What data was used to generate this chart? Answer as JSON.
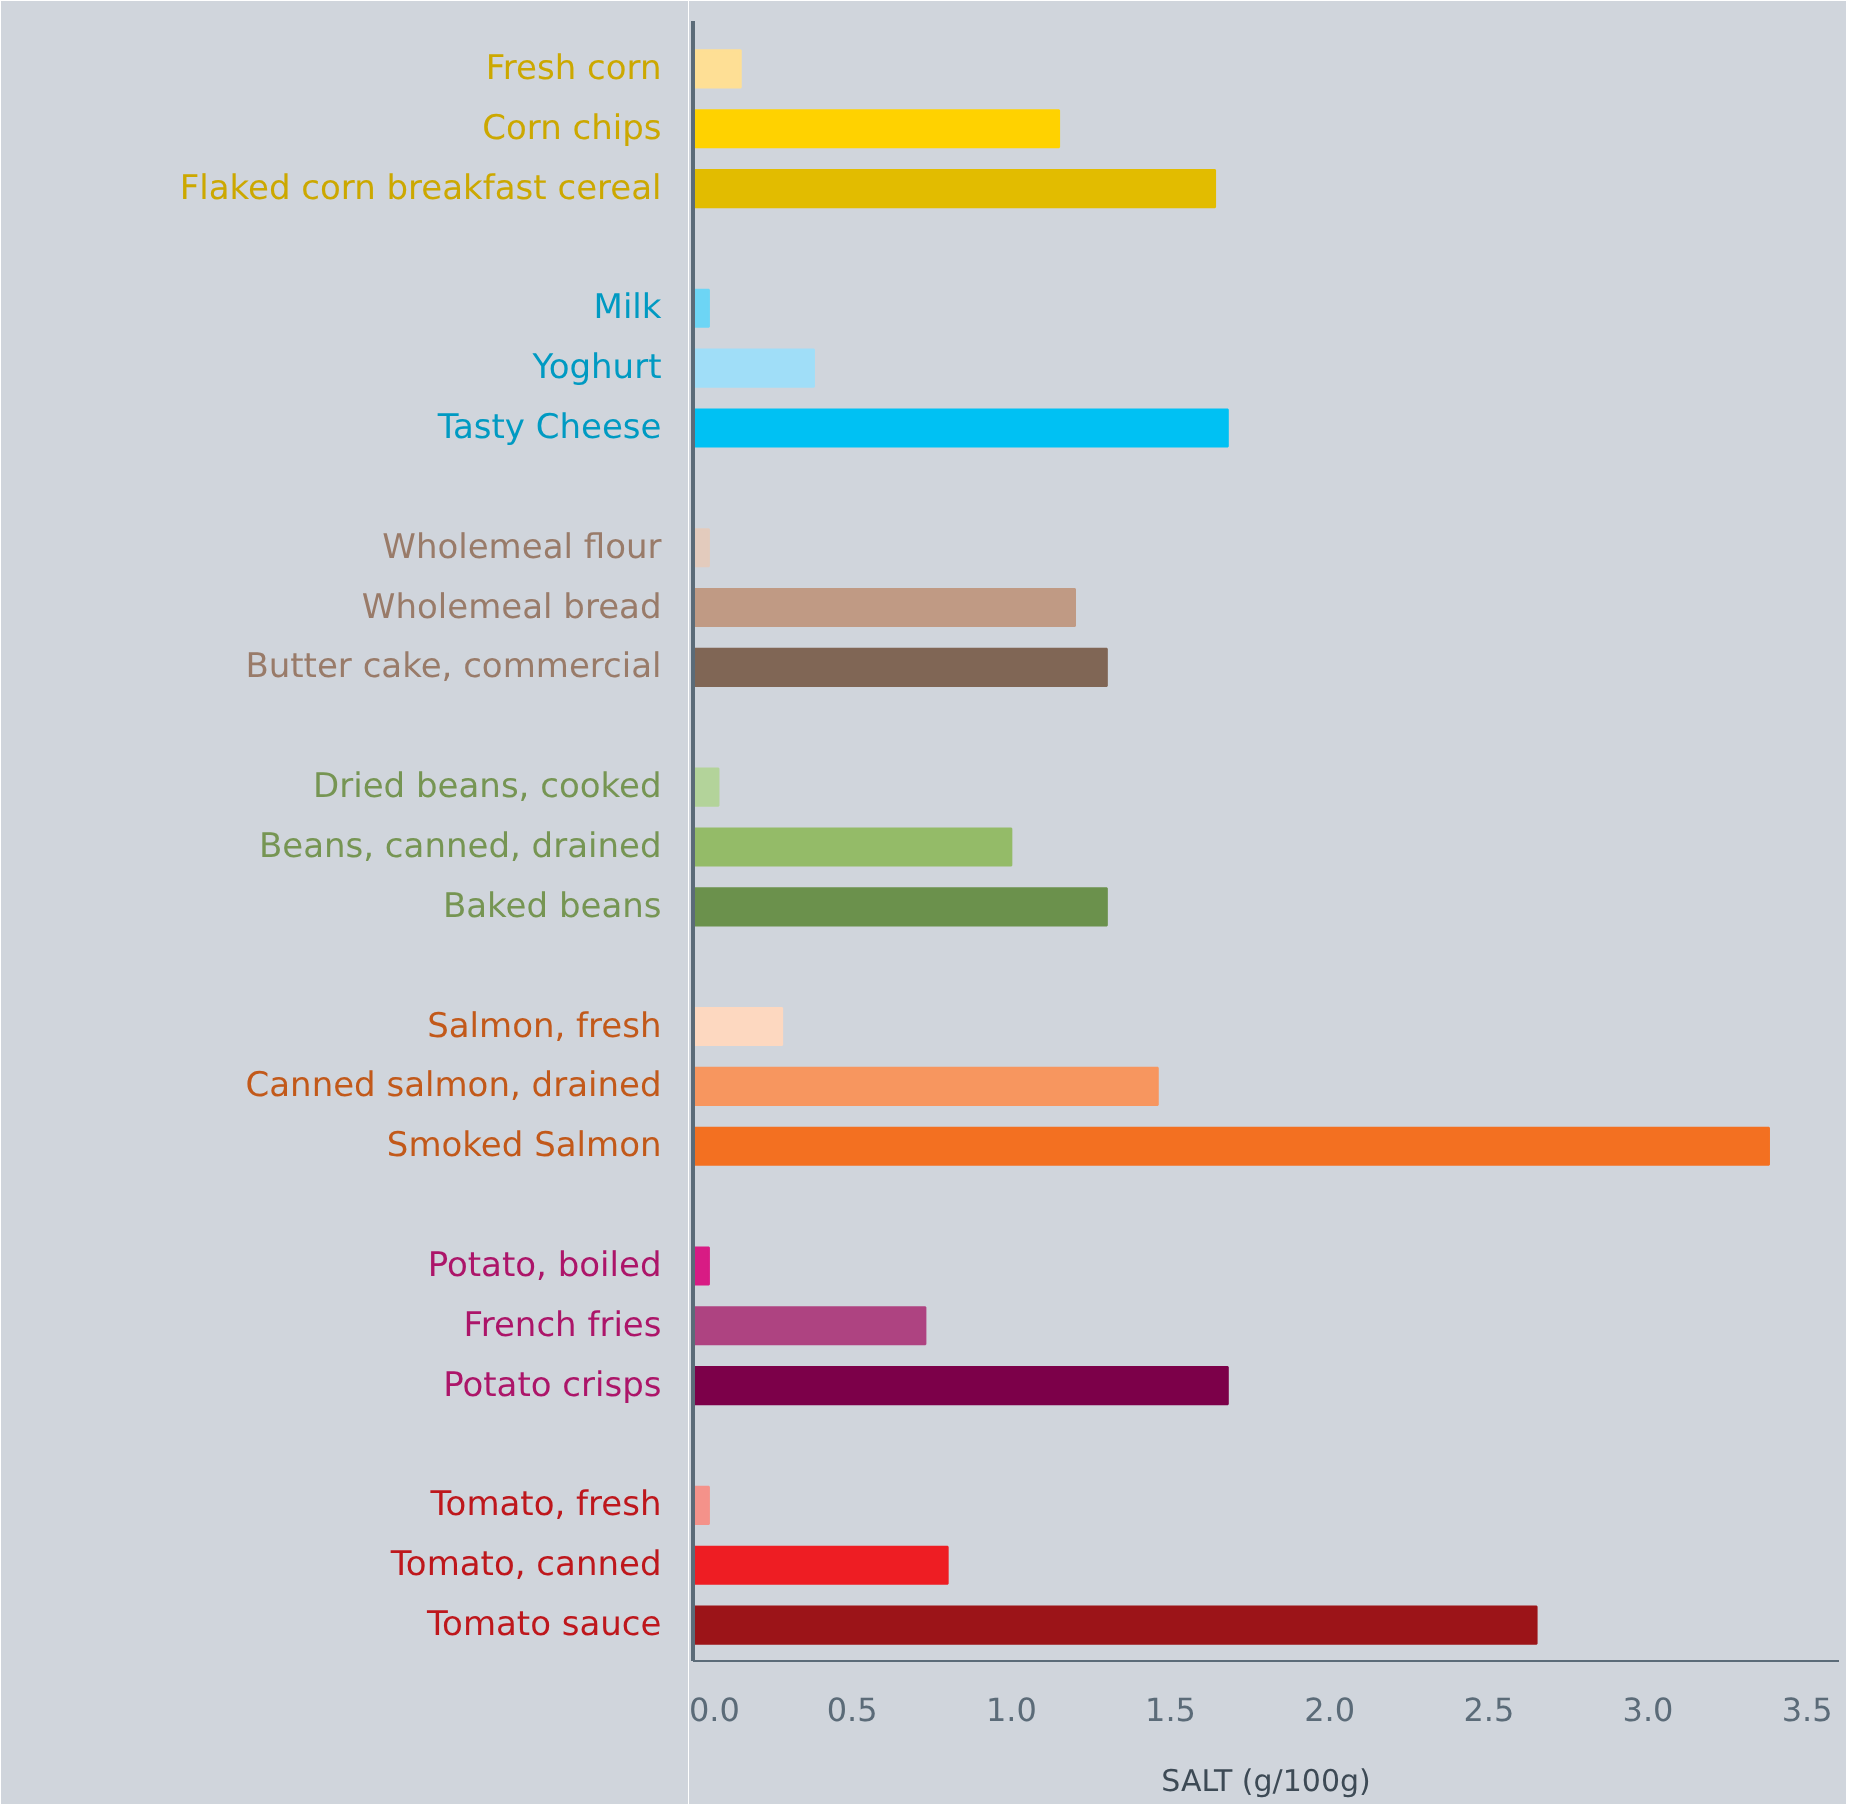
{
  "chart_data": {
    "type": "bar",
    "orientation": "horizontal",
    "xlabel": "SALT (g/100g)",
    "categories": [
      "Fresh corn",
      "Corn chips",
      "Flaked corn breakfast cereal",
      null,
      "Milk",
      "Yoghurt",
      "Tasty Cheese",
      null,
      "Wholemeal flour",
      "Wholemeal bread",
      "Butter cake, commercial",
      null,
      "Dried beans, cooked",
      "Beans, canned, drained",
      "Baked beans",
      null,
      "Salmon, fresh",
      "Canned salmon, drained",
      "Smoked Salmon",
      null,
      "Potato, boiled",
      "French fries",
      "Potato crisps",
      null,
      "Tomato, fresh",
      "Tomato, canned",
      "Tomato sauce"
    ],
    "values": [
      0.15,
      1.15,
      1.64,
      null,
      0.05,
      0.38,
      1.68,
      null,
      0.05,
      1.2,
      1.3,
      null,
      0.08,
      1.0,
      1.3,
      null,
      0.28,
      1.46,
      3.38,
      null,
      0.05,
      0.73,
      1.68,
      null,
      0.05,
      0.8,
      2.65
    ],
    "colors": [
      "#fedf95",
      "#ffd200",
      "#e2bc00",
      null,
      "#6dd5f5",
      "#a0def8",
      "#00c1f3",
      null,
      "#e3cbbd",
      "#c09a84",
      "#806655",
      null,
      "#b3d39a",
      "#94bb68",
      "#6b914c",
      null,
      "#fdd8c0",
      "#f7965f",
      "#f37021",
      null,
      "#d81b84",
      "#ae4381",
      "#7c0049",
      null,
      "#f4928a",
      "#ee1d23",
      "#9c1418"
    ],
    "xlim": [
      0,
      3.6
    ],
    "xticks": [
      {
        "value": 0,
        "label": "0.0"
      },
      0.5,
      {
        "value": 1,
        "label": "1.0"
      },
      1.5,
      {
        "value": 2,
        "label": "2.0"
      },
      2.5,
      {
        "value": 3,
        "label": "3.0"
      },
      3.5
    ],
    "grid": false
  }
}
